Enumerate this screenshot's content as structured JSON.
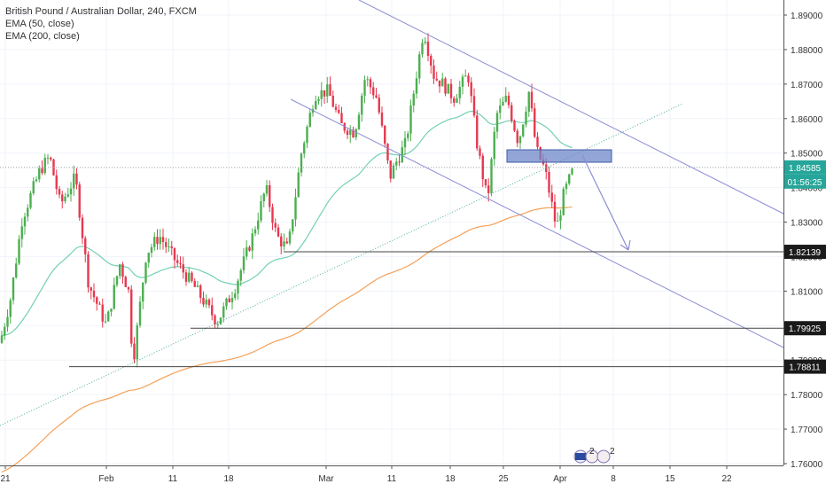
{
  "legend": {
    "title": "British Pound / Australian Dollar, 240, FXCM",
    "ema50": "EMA (50, close)",
    "ema200": "EMA (200, close)"
  },
  "price_axis": {
    "ticks": [
      "1.89000",
      "1.88000",
      "1.87000",
      "1.86000",
      "1.85000",
      "1.84000",
      "1.83000",
      "1.82000",
      "1.81000",
      "1.80000",
      "1.79000",
      "1.78000",
      "1.77000",
      "1.76000"
    ]
  },
  "time_axis": {
    "ticks": [
      "21",
      "Feb",
      "11",
      "18",
      "Mar",
      "11",
      "18",
      "25",
      "Apr",
      "8",
      "15",
      "22"
    ]
  },
  "badges": {
    "current_price": "1.84585",
    "countdown": "01:56:25",
    "level_1": "1.82139",
    "level_2": "1.79925",
    "level_3": "1.78811"
  },
  "event_marker": {
    "label_1": "2",
    "label_2": "2"
  },
  "colors": {
    "up": "#4caf50",
    "down": "#e53950",
    "ema50": "#72d1b1",
    "ema200": "#f5a057",
    "trend": "#8a8fd1",
    "zone": "#6f87c9",
    "badge_dark": "#1a1a1a",
    "badge_green": "#26a69a"
  },
  "chart_data": {
    "type": "candlestick",
    "title": "British Pound / Australian Dollar, 240, FXCM",
    "ylim": [
      1.76,
      1.89
    ],
    "indicators": [
      "EMA (50, close)",
      "EMA (200, close)"
    ],
    "current_price": 1.84585,
    "horizontal_levels": [
      1.82139,
      1.79925,
      1.78811
    ],
    "approx_close_path": [
      {
        "date": "Jan 18",
        "close": 1.795
      },
      {
        "date": "Jan 23",
        "close": 1.849
      },
      {
        "date": "Feb 1",
        "close": 1.803
      },
      {
        "date": "Feb 5",
        "close": 1.789
      },
      {
        "date": "Feb 11",
        "close": 1.826
      },
      {
        "date": "Feb 15",
        "close": 1.8
      },
      {
        "date": "Feb 20",
        "close": 1.84
      },
      {
        "date": "Feb 25",
        "close": 1.822
      },
      {
        "date": "Mar 1",
        "close": 1.87
      },
      {
        "date": "Mar 6",
        "close": 1.858
      },
      {
        "date": "Mar 10",
        "close": 1.841
      },
      {
        "date": "Mar 14",
        "close": 1.883
      },
      {
        "date": "Mar 19",
        "close": 1.866
      },
      {
        "date": "Mar 22",
        "close": 1.836
      },
      {
        "date": "Mar 25",
        "close": 1.868
      },
      {
        "date": "Mar 28",
        "close": 1.85
      },
      {
        "date": "Apr 1",
        "close": 1.828
      },
      {
        "date": "Apr 3",
        "close": 1.846
      }
    ],
    "grid": true
  }
}
